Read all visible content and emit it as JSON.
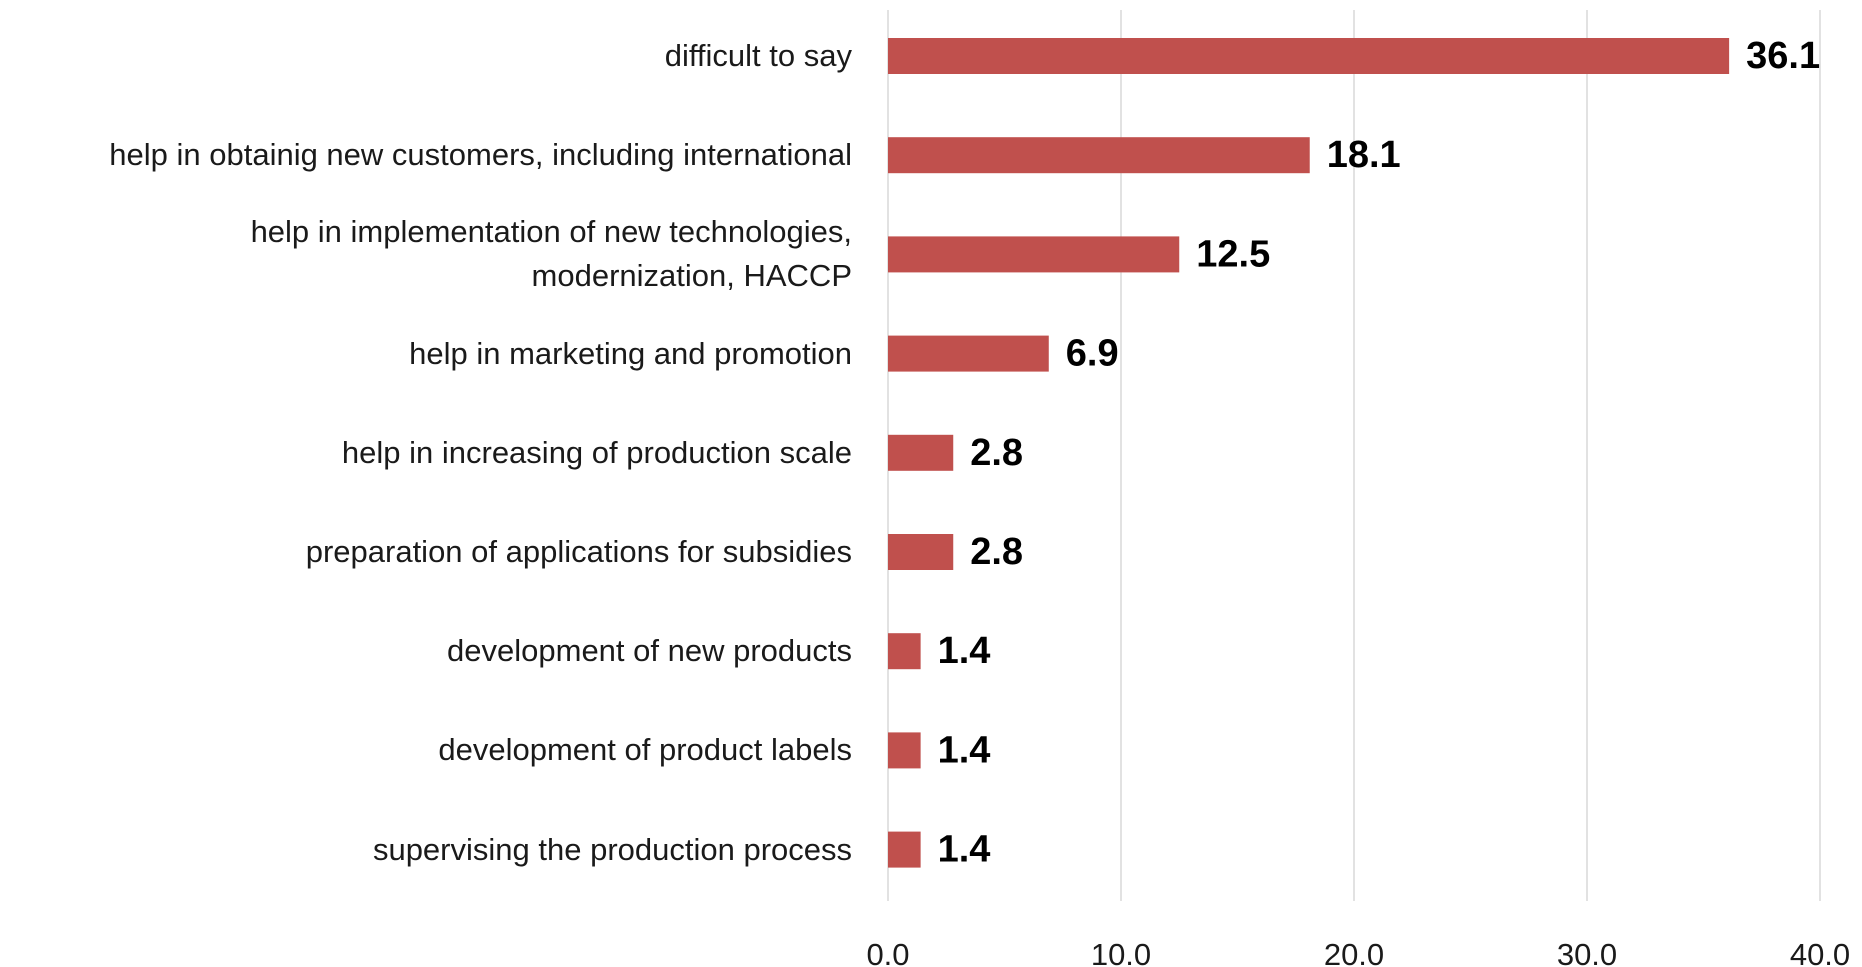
{
  "chart_data": {
    "type": "barh",
    "categories": [
      "difficult to say",
      "help in obtainig new customers, including international",
      "help in implementation of new technologies,\nmodernization, HACCP",
      "help in marketing and promotion",
      "help in increasing of production scale",
      "preparation of applications for subsidies",
      "development of new products",
      "development of product labels",
      "supervising the production process"
    ],
    "values": [
      36.1,
      18.1,
      12.5,
      6.9,
      2.8,
      2.8,
      1.4,
      1.4,
      1.4
    ],
    "color": "#c0504d",
    "xlim": [
      0,
      40
    ],
    "xticks": [
      {
        "value": 0,
        "label": "0.0"
      },
      {
        "value": 10,
        "label": "10.0"
      },
      {
        "value": 20,
        "label": "20.0"
      },
      {
        "value": 30,
        "label": "30.0"
      },
      {
        "value": 40,
        "label": "40.0"
      }
    ],
    "grid": true
  }
}
